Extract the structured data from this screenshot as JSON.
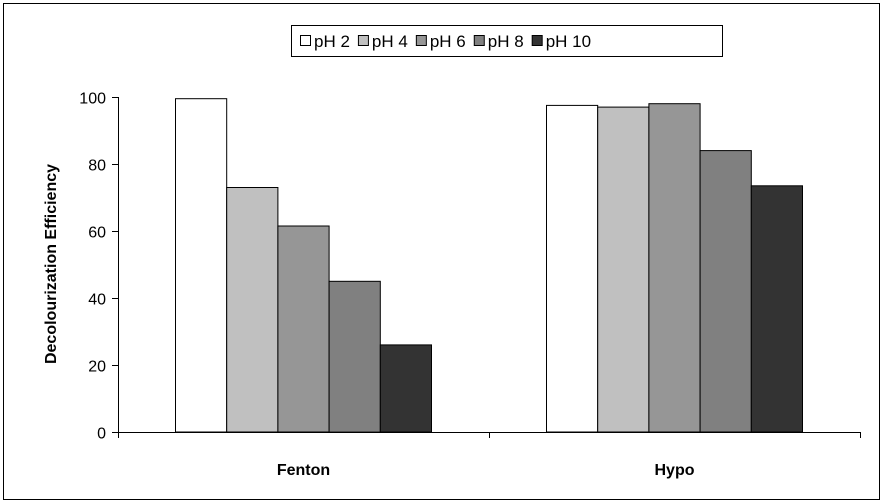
{
  "chart_data": {
    "type": "bar",
    "categories": [
      "Fenton",
      "Hypo"
    ],
    "series": [
      {
        "name": "pH 2",
        "values": [
          99.5,
          97.5
        ],
        "color": "#ffffff"
      },
      {
        "name": "pH 4",
        "values": [
          73,
          97
        ],
        "color": "#c0c0c0"
      },
      {
        "name": "pH 6",
        "values": [
          61.5,
          98
        ],
        "color": "#969696"
      },
      {
        "name": "pH 8",
        "values": [
          45,
          84
        ],
        "color": "#808080"
      },
      {
        "name": "pH 10",
        "values": [
          26,
          73.5
        ],
        "color": "#333333"
      }
    ],
    "ylabel": "Decolourization Efficiency",
    "ylim": [
      0,
      100
    ],
    "yticks": [
      0,
      20,
      40,
      60,
      80,
      100
    ],
    "grid": false,
    "legend_position": "top-center"
  }
}
